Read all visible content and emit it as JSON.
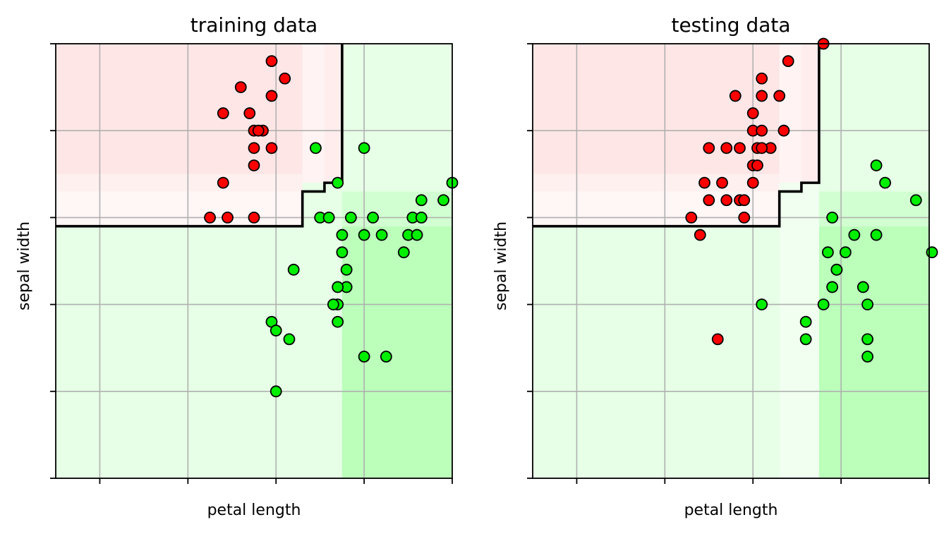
{
  "chart_data": [
    {
      "type": "scatter",
      "title": "training data",
      "xlabel": "petal length",
      "ylabel": "sepal width",
      "xlim": [
        0.5,
        9.5
      ],
      "ylim": [
        0.0,
        5.0
      ],
      "xticks": [
        1.5,
        3.5,
        5.5,
        7.5,
        9.5
      ],
      "yticks": [
        0,
        1,
        2,
        3,
        4,
        5
      ],
      "grid": true,
      "decision_boundary": [
        [
          0.5,
          2.9
        ],
        [
          6.1,
          2.9
        ],
        [
          6.1,
          3.3
        ],
        [
          6.6,
          3.3
        ],
        [
          6.6,
          3.4
        ],
        [
          7.0,
          3.4
        ],
        [
          7.0,
          5.0
        ]
      ],
      "regions": [
        {
          "name": "red-light",
          "x": [
            0.5,
            6.1
          ],
          "y": [
            3.5,
            5.0
          ],
          "color": "#ffe6e6"
        },
        {
          "name": "red-faint",
          "x": [
            0.5,
            6.1
          ],
          "y": [
            3.3,
            3.5
          ],
          "color": "#fff0f0"
        },
        {
          "name": "red-palest",
          "x": [
            0.5,
            6.1
          ],
          "y": [
            2.9,
            3.3
          ],
          "color": "#fff6f6"
        },
        {
          "name": "red-mid-1",
          "x": [
            6.1,
            6.6
          ],
          "y": [
            3.4,
            5.0
          ],
          "color": "#fff3f3"
        },
        {
          "name": "red-mid-2",
          "x": [
            6.6,
            7.0
          ],
          "y": [
            3.4,
            5.0
          ],
          "color": "#ffeded"
        },
        {
          "name": "green-dark",
          "x": [
            7.0,
            9.5
          ],
          "y": [
            0.0,
            2.9
          ],
          "color": "#bbffbb"
        },
        {
          "name": "green-med",
          "x": [
            7.0,
            9.5
          ],
          "y": [
            2.9,
            3.3
          ],
          "color": "#d2ffd2"
        },
        {
          "name": "green-light-top",
          "x": [
            7.0,
            9.5
          ],
          "y": [
            3.3,
            5.0
          ],
          "color": "#e6ffe6"
        }
      ],
      "series": [
        {
          "name": "red",
          "color": "#ff0000",
          "points": [
            [
              5.4,
              4.8
            ],
            [
              5.7,
              4.6
            ],
            [
              5.4,
              4.4
            ],
            [
              4.7,
              4.5
            ],
            [
              4.9,
              4.2
            ],
            [
              4.3,
              4.2
            ],
            [
              5.2,
              4.0
            ],
            [
              5.0,
              4.0
            ],
            [
              5.1,
              4.0
            ],
            [
              5.4,
              3.8
            ],
            [
              5.0,
              3.8
            ],
            [
              5.0,
              3.6
            ],
            [
              4.3,
              3.4
            ],
            [
              4.4,
              3.0
            ],
            [
              4.0,
              3.0
            ],
            [
              5.0,
              3.0
            ]
          ]
        },
        {
          "name": "green",
          "color": "#00ee00",
          "points": [
            [
              6.4,
              3.8
            ],
            [
              6.9,
              3.4
            ],
            [
              7.5,
              3.8
            ],
            [
              9.5,
              3.4
            ],
            [
              9.3,
              3.2
            ],
            [
              8.8,
              3.2
            ],
            [
              8.6,
              3.0
            ],
            [
              8.8,
              3.0
            ],
            [
              7.7,
              3.0
            ],
            [
              6.5,
              3.0
            ],
            [
              7.2,
              3.0
            ],
            [
              6.7,
              3.0
            ],
            [
              7.0,
              2.8
            ],
            [
              7.5,
              2.8
            ],
            [
              7.9,
              2.8
            ],
            [
              8.5,
              2.8
            ],
            [
              8.7,
              2.8
            ],
            [
              7.0,
              2.6
            ],
            [
              8.4,
              2.6
            ],
            [
              5.9,
              2.4
            ],
            [
              7.1,
              2.4
            ],
            [
              7.1,
              2.2
            ],
            [
              6.9,
              2.2
            ],
            [
              6.9,
              2.0
            ],
            [
              6.8,
              2.0
            ],
            [
              6.9,
              1.8
            ],
            [
              5.4,
              1.8
            ],
            [
              5.5,
              1.7
            ],
            [
              5.8,
              1.6
            ],
            [
              7.5,
              1.4
            ],
            [
              8.0,
              1.4
            ],
            [
              5.5,
              1.0
            ]
          ]
        }
      ]
    },
    {
      "type": "scatter",
      "title": "testing data",
      "xlabel": "petal length",
      "ylabel": "sepal width",
      "xlim": [
        0.5,
        9.5
      ],
      "ylim": [
        0.0,
        5.0
      ],
      "xticks": [
        1.5,
        3.5,
        5.5,
        7.5,
        9.5
      ],
      "yticks": [
        0,
        1,
        2,
        3,
        4,
        5
      ],
      "grid": true,
      "decision_boundary": [
        [
          0.5,
          2.9
        ],
        [
          6.1,
          2.9
        ],
        [
          6.1,
          3.3
        ],
        [
          6.6,
          3.3
        ],
        [
          6.6,
          3.4
        ],
        [
          7.0,
          3.4
        ],
        [
          7.0,
          5.0
        ]
      ],
      "regions": [
        {
          "name": "red-light",
          "x": [
            0.5,
            6.1
          ],
          "y": [
            3.5,
            5.0
          ],
          "color": "#ffe6e6"
        },
        {
          "name": "red-faint",
          "x": [
            0.5,
            6.1
          ],
          "y": [
            3.3,
            3.5
          ],
          "color": "#fff0f0"
        },
        {
          "name": "red-palest",
          "x": [
            0.5,
            6.1
          ],
          "y": [
            2.9,
            3.3
          ],
          "color": "#fff6f6"
        },
        {
          "name": "red-mid-1",
          "x": [
            6.1,
            6.6
          ],
          "y": [
            3.4,
            5.0
          ],
          "color": "#fff3f3"
        },
        {
          "name": "red-mid-2",
          "x": [
            6.6,
            7.0
          ],
          "y": [
            3.4,
            5.0
          ],
          "color": "#ffeded"
        },
        {
          "name": "green-light-left",
          "x": [
            6.1,
            7.0
          ],
          "y": [
            0.0,
            3.4
          ],
          "color": "#f0fff0"
        },
        {
          "name": "green-dark",
          "x": [
            7.0,
            9.5
          ],
          "y": [
            0.0,
            2.9
          ],
          "color": "#bbffbb"
        },
        {
          "name": "green-med",
          "x": [
            7.0,
            9.5
          ],
          "y": [
            2.9,
            3.3
          ],
          "color": "#d2ffd2"
        },
        {
          "name": "green-light-top",
          "x": [
            7.0,
            9.5
          ],
          "y": [
            3.3,
            5.0
          ],
          "color": "#e6ffe6"
        }
      ],
      "series": [
        {
          "name": "red",
          "color": "#ff0000",
          "points": [
            [
              7.1,
              5.0
            ],
            [
              6.3,
              4.8
            ],
            [
              5.7,
              4.6
            ],
            [
              5.7,
              4.4
            ],
            [
              5.1,
              4.4
            ],
            [
              6.1,
              4.4
            ],
            [
              5.5,
              4.2
            ],
            [
              5.5,
              4.0
            ],
            [
              5.7,
              4.0
            ],
            [
              6.2,
              4.0
            ],
            [
              5.9,
              3.8
            ],
            [
              5.6,
              3.8
            ],
            [
              5.7,
              3.8
            ],
            [
              4.5,
              3.8
            ],
            [
              4.9,
              3.8
            ],
            [
              5.2,
              3.8
            ],
            [
              5.5,
              3.6
            ],
            [
              5.6,
              3.6
            ],
            [
              4.4,
              3.4
            ],
            [
              4.8,
              3.4
            ],
            [
              5.5,
              3.4
            ],
            [
              4.5,
              3.2
            ],
            [
              4.9,
              3.2
            ],
            [
              5.2,
              3.2
            ],
            [
              5.3,
              3.2
            ],
            [
              4.1,
              3.0
            ],
            [
              5.3,
              3.0
            ],
            [
              4.3,
              2.8
            ],
            [
              4.7,
              1.6
            ]
          ]
        },
        {
          "name": "green",
          "color": "#00ee00",
          "points": [
            [
              8.3,
              3.6
            ],
            [
              8.5,
              3.4
            ],
            [
              9.2,
              3.2
            ],
            [
              7.3,
              3.0
            ],
            [
              7.8,
              2.8
            ],
            [
              8.3,
              2.8
            ],
            [
              7.2,
              2.6
            ],
            [
              7.6,
              2.6
            ],
            [
              9.9,
              2.6
            ],
            [
              7.4,
              2.4
            ],
            [
              7.3,
              2.2
            ],
            [
              8.0,
              2.2
            ],
            [
              7.1,
              2.0
            ],
            [
              7.4,
              2.4
            ],
            [
              5.7,
              2.0
            ],
            [
              8.1,
              2.0
            ],
            [
              6.7,
              1.8
            ],
            [
              6.7,
              1.6
            ],
            [
              8.1,
              1.6
            ],
            [
              8.1,
              1.4
            ]
          ]
        }
      ]
    }
  ]
}
